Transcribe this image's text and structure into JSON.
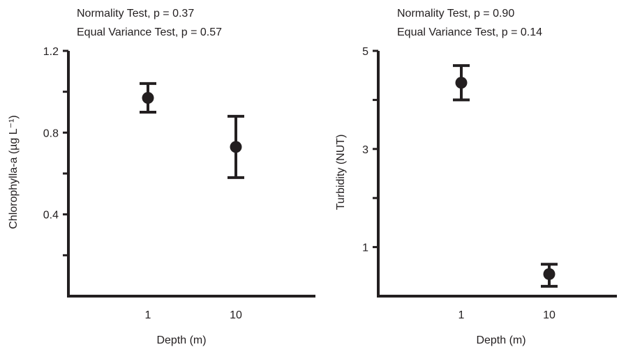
{
  "chart_data": [
    {
      "type": "scatter",
      "annotations": [
        "Normality Test, p = 0.37",
        "Equal Variance Test, p = 0.57"
      ],
      "xlabel": "Depth (m)",
      "ylabel": "Chlorophylla-a (µg L⁻¹)",
      "categories": [
        "1",
        "10"
      ],
      "yticks": [
        "0.4",
        "0.8",
        "1.2"
      ],
      "ylim": [
        0.0,
        1.2
      ],
      "grid": false,
      "series": [
        {
          "x": [
            "1",
            "10"
          ],
          "y": [
            0.97,
            0.73
          ],
          "err_low": [
            0.9,
            0.58
          ],
          "err_high": [
            1.04,
            0.88
          ]
        }
      ]
    },
    {
      "type": "scatter",
      "annotations": [
        "Normality Test, p = 0.90",
        "Equal Variance Test, p = 0.14"
      ],
      "xlabel": "Depth (m)",
      "ylabel": "Turbidity (NUT)",
      "categories": [
        "1",
        "10"
      ],
      "yticks": [
        "1",
        "3",
        "5"
      ],
      "ylim": [
        0.0,
        5.0
      ],
      "grid": false,
      "series": [
        {
          "x": [
            "1",
            "10"
          ],
          "y": [
            4.35,
            0.45
          ],
          "err_low": [
            4.0,
            0.2
          ],
          "err_high": [
            4.7,
            0.65
          ]
        }
      ]
    }
  ]
}
